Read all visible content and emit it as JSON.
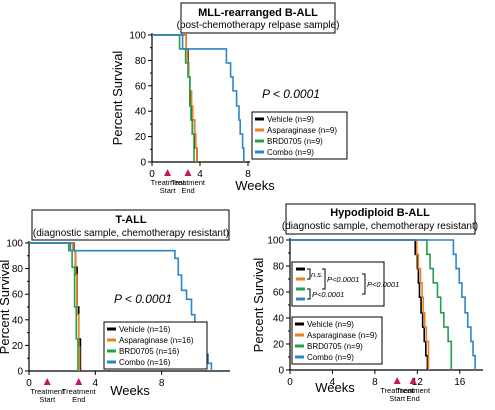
{
  "chart_data": [
    {
      "type": "line",
      "title": "MLL-rearranged B-ALL",
      "subtitle": "(post-chemotherapy relpase sample)",
      "xlabel": "Weeks",
      "ylabel": "Percent Survival",
      "xlim": [
        0,
        8
      ],
      "ylim": [
        0,
        100
      ],
      "xticks": [
        0,
        4,
        8
      ],
      "yticks": [
        0,
        10,
        20,
        30,
        40,
        50,
        60,
        70,
        80,
        90,
        100
      ],
      "pvalue": "P < 0.0001",
      "legend_position": "bottom-right",
      "treatment": {
        "start": 1.3,
        "end": 3.0,
        "start_label": "Treatment\nStart",
        "end_label": "Treatment\nEnd"
      },
      "series": [
        {
          "name": "Vehicle (n=9)",
          "color": "#000000",
          "points": [
            [
              0,
              100
            ],
            [
              2.85,
              100
            ],
            [
              2.85,
              89
            ],
            [
              3.0,
              89
            ],
            [
              3.0,
              78
            ],
            [
              3.05,
              78
            ],
            [
              3.05,
              67
            ],
            [
              3.15,
              67
            ],
            [
              3.15,
              56
            ],
            [
              3.2,
              56
            ],
            [
              3.2,
              44
            ],
            [
              3.3,
              44
            ],
            [
              3.3,
              33
            ],
            [
              3.55,
              33
            ],
            [
              3.55,
              22
            ],
            [
              3.6,
              22
            ],
            [
              3.6,
              11
            ],
            [
              3.75,
              11
            ],
            [
              3.75,
              0
            ]
          ]
        },
        {
          "name": "Asparaginase (n=9)",
          "color": "#f07f1e",
          "points": [
            [
              0,
              100
            ],
            [
              2.85,
              100
            ],
            [
              2.85,
              89
            ],
            [
              2.95,
              89
            ],
            [
              2.95,
              78
            ],
            [
              3.05,
              78
            ],
            [
              3.05,
              67
            ],
            [
              3.15,
              67
            ],
            [
              3.15,
              56
            ],
            [
              3.3,
              56
            ],
            [
              3.3,
              44
            ],
            [
              3.4,
              44
            ],
            [
              3.4,
              33
            ],
            [
              3.55,
              33
            ],
            [
              3.55,
              22
            ],
            [
              3.65,
              22
            ],
            [
              3.65,
              11
            ],
            [
              3.75,
              11
            ],
            [
              3.75,
              0
            ]
          ]
        },
        {
          "name": "BRD0705 (n=9)",
          "color": "#23a04a",
          "points": [
            [
              0,
              100
            ],
            [
              2.3,
              100
            ],
            [
              2.3,
              89
            ],
            [
              2.8,
              89
            ],
            [
              2.8,
              78
            ],
            [
              3.0,
              78
            ],
            [
              3.0,
              67
            ],
            [
              3.15,
              67
            ],
            [
              3.15,
              44
            ],
            [
              3.25,
              44
            ],
            [
              3.25,
              33
            ],
            [
              3.35,
              33
            ],
            [
              3.35,
              22
            ],
            [
              3.5,
              22
            ],
            [
              3.5,
              0
            ]
          ]
        },
        {
          "name": "Combo (n=9)",
          "color": "#2d86c8",
          "points": [
            [
              0,
              100
            ],
            [
              2.55,
              100
            ],
            [
              2.55,
              89
            ],
            [
              6.2,
              89
            ],
            [
              6.2,
              78
            ],
            [
              6.55,
              78
            ],
            [
              6.55,
              67
            ],
            [
              6.75,
              67
            ],
            [
              6.75,
              56
            ],
            [
              7.05,
              56
            ],
            [
              7.05,
              44
            ],
            [
              7.25,
              44
            ],
            [
              7.25,
              33
            ],
            [
              7.35,
              33
            ],
            [
              7.35,
              22
            ],
            [
              7.55,
              22
            ],
            [
              7.55,
              11
            ],
            [
              7.65,
              11
            ],
            [
              7.65,
              0
            ]
          ]
        }
      ]
    },
    {
      "type": "line",
      "title": "T-ALL",
      "subtitle": "(diagnostic sample, chemotherapy resistant)",
      "xlabel": "Weeks",
      "ylabel": "Percent Survival",
      "xlim": [
        0,
        12
      ],
      "ylim": [
        0,
        100
      ],
      "xticks": [
        0,
        4,
        8
      ],
      "yticks": [
        0,
        10,
        20,
        30,
        40,
        50,
        60,
        70,
        80,
        90,
        100
      ],
      "pvalue": "P < 0.0001",
      "legend_position": "bottom-right",
      "treatment": {
        "start": 1.1,
        "end": 3.0,
        "start_label": "Treatment\nStart",
        "end_label": "Treatment\nEnd"
      },
      "series": [
        {
          "name": "Vehicle (n=16)",
          "color": "#000000",
          "points": [
            [
              0,
              100
            ],
            [
              2.7,
              100
            ],
            [
              2.7,
              94
            ],
            [
              2.8,
              94
            ],
            [
              2.8,
              81
            ],
            [
              2.9,
              81
            ],
            [
              2.9,
              50
            ],
            [
              3.0,
              50
            ],
            [
              3.0,
              25
            ],
            [
              3.1,
              25
            ],
            [
              3.1,
              0
            ]
          ]
        },
        {
          "name": "Asparaginase (n=16)",
          "color": "#f07f1e",
          "points": [
            [
              0,
              100
            ],
            [
              2.65,
              100
            ],
            [
              2.65,
              94
            ],
            [
              2.8,
              94
            ],
            [
              2.8,
              75
            ],
            [
              2.9,
              75
            ],
            [
              2.9,
              44
            ],
            [
              3.0,
              44
            ],
            [
              3.0,
              19
            ],
            [
              3.05,
              19
            ],
            [
              3.05,
              0
            ]
          ]
        },
        {
          "name": "BRD0705 (n=16)",
          "color": "#23a04a",
          "points": [
            [
              0,
              100
            ],
            [
              2.4,
              100
            ],
            [
              2.4,
              94
            ],
            [
              2.6,
              94
            ],
            [
              2.6,
              81
            ],
            [
              2.75,
              81
            ],
            [
              2.75,
              50
            ],
            [
              2.85,
              50
            ],
            [
              2.85,
              25
            ],
            [
              2.95,
              25
            ],
            [
              2.95,
              0
            ]
          ]
        },
        {
          "name": "Combo (n=16)",
          "color": "#2d86c8",
          "points": [
            [
              0,
              100
            ],
            [
              2.5,
              100
            ],
            [
              2.5,
              94
            ],
            [
              8.8,
              94
            ],
            [
              8.8,
              88
            ],
            [
              9.0,
              88
            ],
            [
              9.0,
              75
            ],
            [
              9.2,
              75
            ],
            [
              9.2,
              63
            ],
            [
              9.5,
              63
            ],
            [
              9.5,
              56
            ],
            [
              9.8,
              56
            ],
            [
              9.8,
              44
            ],
            [
              10.0,
              44
            ],
            [
              10.0,
              38
            ],
            [
              10.2,
              38
            ],
            [
              10.2,
              25
            ],
            [
              10.4,
              25
            ],
            [
              10.4,
              19
            ],
            [
              10.6,
              19
            ],
            [
              10.6,
              13
            ],
            [
              10.8,
              13
            ],
            [
              10.8,
              6
            ],
            [
              11.0,
              6
            ],
            [
              11.0,
              0
            ]
          ]
        }
      ]
    },
    {
      "type": "line",
      "title": "Hypodiploid B-ALL",
      "subtitle": "(diagnostic sample, chemotherapy resistant)",
      "xlabel": "Weeks",
      "ylabel": "Percent Survival",
      "xlim": [
        0,
        18
      ],
      "ylim": [
        0,
        100
      ],
      "xticks": [
        0,
        4,
        8,
        12,
        16
      ],
      "yticks": [
        0,
        10,
        20,
        30,
        40,
        50,
        60,
        70,
        80,
        90,
        100
      ],
      "legend_position": "bottom-left",
      "treatment": {
        "start": 10.1,
        "end": 11.6,
        "start_label": "Treatment\nStart",
        "end_label": "Treatment\nEnd"
      },
      "significance": {
        "ns": "n.s.",
        "p1": "P<0.0001",
        "p2": "P<0.0001",
        "p3": "P<0.0001"
      },
      "series": [
        {
          "name": "Vehicle (n=9)",
          "color": "#000000",
          "points": [
            [
              0,
              100
            ],
            [
              11.8,
              100
            ],
            [
              11.8,
              89
            ],
            [
              12.0,
              89
            ],
            [
              12.0,
              78
            ],
            [
              12.1,
              78
            ],
            [
              12.1,
              67
            ],
            [
              12.2,
              67
            ],
            [
              12.2,
              56
            ],
            [
              12.35,
              56
            ],
            [
              12.35,
              44
            ],
            [
              12.5,
              44
            ],
            [
              12.5,
              33
            ],
            [
              12.65,
              33
            ],
            [
              12.65,
              22
            ],
            [
              12.8,
              22
            ],
            [
              12.8,
              11
            ],
            [
              12.95,
              11
            ],
            [
              12.95,
              0
            ]
          ]
        },
        {
          "name": "Asparaginase (n=9)",
          "color": "#f07f1e",
          "points": [
            [
              0,
              100
            ],
            [
              11.95,
              100
            ],
            [
              11.95,
              89
            ],
            [
              12.1,
              89
            ],
            [
              12.1,
              78
            ],
            [
              12.3,
              78
            ],
            [
              12.3,
              67
            ],
            [
              12.45,
              67
            ],
            [
              12.45,
              56
            ],
            [
              12.55,
              56
            ],
            [
              12.55,
              44
            ],
            [
              12.7,
              44
            ],
            [
              12.7,
              33
            ],
            [
              12.85,
              33
            ],
            [
              12.85,
              22
            ],
            [
              13.05,
              22
            ],
            [
              13.05,
              0
            ]
          ]
        },
        {
          "name": "BRD0705 (n=9)",
          "color": "#23a04a",
          "points": [
            [
              0,
              100
            ],
            [
              12.9,
              100
            ],
            [
              12.9,
              89
            ],
            [
              13.2,
              89
            ],
            [
              13.2,
              78
            ],
            [
              13.5,
              78
            ],
            [
              13.5,
              67
            ],
            [
              13.9,
              67
            ],
            [
              13.9,
              56
            ],
            [
              14.2,
              56
            ],
            [
              14.2,
              44
            ],
            [
              14.5,
              44
            ],
            [
              14.5,
              33
            ],
            [
              14.9,
              33
            ],
            [
              14.9,
              22
            ],
            [
              15.2,
              22
            ],
            [
              15.2,
              0
            ]
          ]
        },
        {
          "name": "Combo (n=9)",
          "color": "#2d86c8",
          "points": [
            [
              0,
              100
            ],
            [
              15.4,
              100
            ],
            [
              15.4,
              89
            ],
            [
              15.65,
              89
            ],
            [
              15.65,
              78
            ],
            [
              15.95,
              78
            ],
            [
              15.95,
              67
            ],
            [
              16.2,
              67
            ],
            [
              16.2,
              56
            ],
            [
              16.5,
              56
            ],
            [
              16.5,
              44
            ],
            [
              16.75,
              44
            ],
            [
              16.75,
              33
            ],
            [
              17.05,
              33
            ],
            [
              17.05,
              22
            ],
            [
              17.25,
              22
            ],
            [
              17.25,
              11
            ],
            [
              17.45,
              11
            ],
            [
              17.45,
              0
            ]
          ]
        }
      ]
    }
  ]
}
